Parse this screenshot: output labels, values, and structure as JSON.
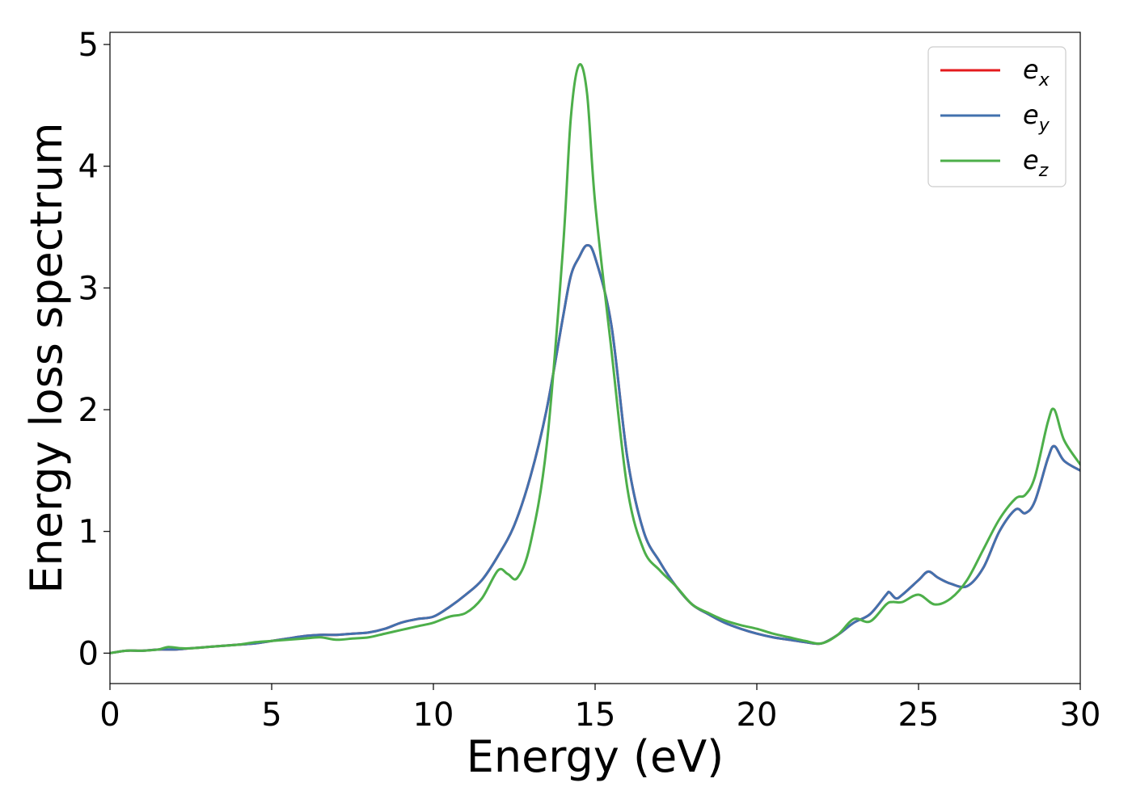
{
  "chart_data": {
    "type": "line",
    "title": "",
    "xlabel": "Energy (eV)",
    "ylabel": "Energy loss spectrum",
    "xlim": [
      0,
      30
    ],
    "ylim": [
      -0.25,
      5.1
    ],
    "xticks": [
      0,
      5,
      10,
      15,
      20,
      25,
      30
    ],
    "xtick_labels": [
      "0",
      "5",
      "10",
      "15",
      "20",
      "25",
      "30"
    ],
    "yticks": [
      0,
      1,
      2,
      3,
      4,
      5
    ],
    "ytick_labels": [
      "0",
      "1",
      "2",
      "3",
      "4",
      "5"
    ],
    "grid": false,
    "legend_position": "top-right",
    "series": [
      {
        "name": "e_x",
        "legend_base": "e",
        "legend_sub": "x",
        "color": "#e41a1c",
        "x": [
          0,
          0.5,
          1,
          1.5,
          2,
          2.5,
          3,
          3.5,
          4,
          4.5,
          5,
          5.5,
          6,
          6.5,
          7,
          7.5,
          8,
          8.5,
          9,
          9.5,
          10,
          10.5,
          11,
          11.5,
          12,
          12.5,
          13,
          13.5,
          14,
          14.25,
          14.5,
          14.75,
          15,
          15.5,
          16,
          16.5,
          17,
          17.5,
          18,
          18.5,
          19,
          19.5,
          20,
          20.5,
          21,
          21.5,
          22,
          22.5,
          23,
          23.5,
          24,
          24.1,
          24.3,
          24.5,
          25,
          25.3,
          25.6,
          26,
          26.5,
          27,
          27.5,
          28,
          28.3,
          28.6,
          29,
          29.2,
          29.5,
          30
        ],
        "y": [
          0,
          0.02,
          0.02,
          0.03,
          0.03,
          0.04,
          0.05,
          0.06,
          0.07,
          0.08,
          0.1,
          0.12,
          0.14,
          0.15,
          0.15,
          0.16,
          0.17,
          0.2,
          0.25,
          0.28,
          0.3,
          0.38,
          0.48,
          0.6,
          0.8,
          1.05,
          1.45,
          2.0,
          2.75,
          3.1,
          3.25,
          3.35,
          3.25,
          2.7,
          1.6,
          1.0,
          0.75,
          0.55,
          0.4,
          0.32,
          0.25,
          0.2,
          0.16,
          0.13,
          0.11,
          0.09,
          0.08,
          0.15,
          0.25,
          0.32,
          0.48,
          0.5,
          0.45,
          0.48,
          0.6,
          0.67,
          0.62,
          0.57,
          0.55,
          0.7,
          1.0,
          1.18,
          1.15,
          1.25,
          1.6,
          1.7,
          1.58,
          1.5
        ]
      },
      {
        "name": "e_y",
        "legend_base": "e",
        "legend_sub": "y",
        "color": "#4271ae",
        "x": [
          0,
          0.5,
          1,
          1.5,
          2,
          2.5,
          3,
          3.5,
          4,
          4.5,
          5,
          5.5,
          6,
          6.5,
          7,
          7.5,
          8,
          8.5,
          9,
          9.5,
          10,
          10.5,
          11,
          11.5,
          12,
          12.5,
          13,
          13.5,
          14,
          14.25,
          14.5,
          14.75,
          15,
          15.5,
          16,
          16.5,
          17,
          17.5,
          18,
          18.5,
          19,
          19.5,
          20,
          20.5,
          21,
          21.5,
          22,
          22.5,
          23,
          23.5,
          24,
          24.1,
          24.3,
          24.5,
          25,
          25.3,
          25.6,
          26,
          26.5,
          27,
          27.5,
          28,
          28.3,
          28.6,
          29,
          29.2,
          29.5,
          30
        ],
        "y": [
          0,
          0.02,
          0.02,
          0.03,
          0.03,
          0.04,
          0.05,
          0.06,
          0.07,
          0.08,
          0.1,
          0.12,
          0.14,
          0.15,
          0.15,
          0.16,
          0.17,
          0.2,
          0.25,
          0.28,
          0.3,
          0.38,
          0.48,
          0.6,
          0.8,
          1.05,
          1.45,
          2.0,
          2.75,
          3.1,
          3.25,
          3.35,
          3.25,
          2.7,
          1.6,
          1.0,
          0.75,
          0.55,
          0.4,
          0.32,
          0.25,
          0.2,
          0.16,
          0.13,
          0.11,
          0.09,
          0.08,
          0.15,
          0.25,
          0.32,
          0.48,
          0.5,
          0.45,
          0.48,
          0.6,
          0.67,
          0.62,
          0.57,
          0.55,
          0.7,
          1.0,
          1.18,
          1.15,
          1.25,
          1.6,
          1.7,
          1.58,
          1.5
        ]
      },
      {
        "name": "e_z",
        "legend_base": "e",
        "legend_sub": "z",
        "color": "#4daf4a",
        "x": [
          0,
          0.5,
          1,
          1.5,
          1.8,
          2.2,
          2.5,
          3,
          3.5,
          4,
          4.5,
          5,
          5.5,
          6,
          6.5,
          7,
          7.5,
          8,
          8.5,
          9,
          9.5,
          10,
          10.5,
          11,
          11.5,
          12,
          12.3,
          12.6,
          13,
          13.5,
          14,
          14.25,
          14.5,
          14.75,
          15,
          15.5,
          16,
          16.5,
          17,
          17.5,
          18,
          18.5,
          19,
          19.5,
          20,
          20.5,
          21,
          21.5,
          22,
          22.5,
          23,
          23.5,
          24,
          24.2,
          24.5,
          25,
          25.5,
          26,
          26.5,
          27,
          27.5,
          28,
          28.3,
          28.6,
          29,
          29.2,
          29.5,
          30
        ],
        "y": [
          0,
          0.02,
          0.02,
          0.03,
          0.05,
          0.04,
          0.04,
          0.05,
          0.06,
          0.07,
          0.09,
          0.1,
          0.11,
          0.12,
          0.13,
          0.11,
          0.12,
          0.13,
          0.16,
          0.19,
          0.22,
          0.25,
          0.3,
          0.33,
          0.45,
          0.68,
          0.65,
          0.62,
          0.9,
          1.7,
          3.3,
          4.4,
          4.83,
          4.6,
          3.7,
          2.5,
          1.35,
          0.85,
          0.68,
          0.55,
          0.4,
          0.33,
          0.27,
          0.23,
          0.2,
          0.16,
          0.13,
          0.1,
          0.08,
          0.15,
          0.28,
          0.26,
          0.4,
          0.42,
          0.42,
          0.48,
          0.4,
          0.45,
          0.6,
          0.85,
          1.1,
          1.27,
          1.3,
          1.45,
          1.9,
          2.0,
          1.75,
          1.55
        ]
      }
    ]
  }
}
